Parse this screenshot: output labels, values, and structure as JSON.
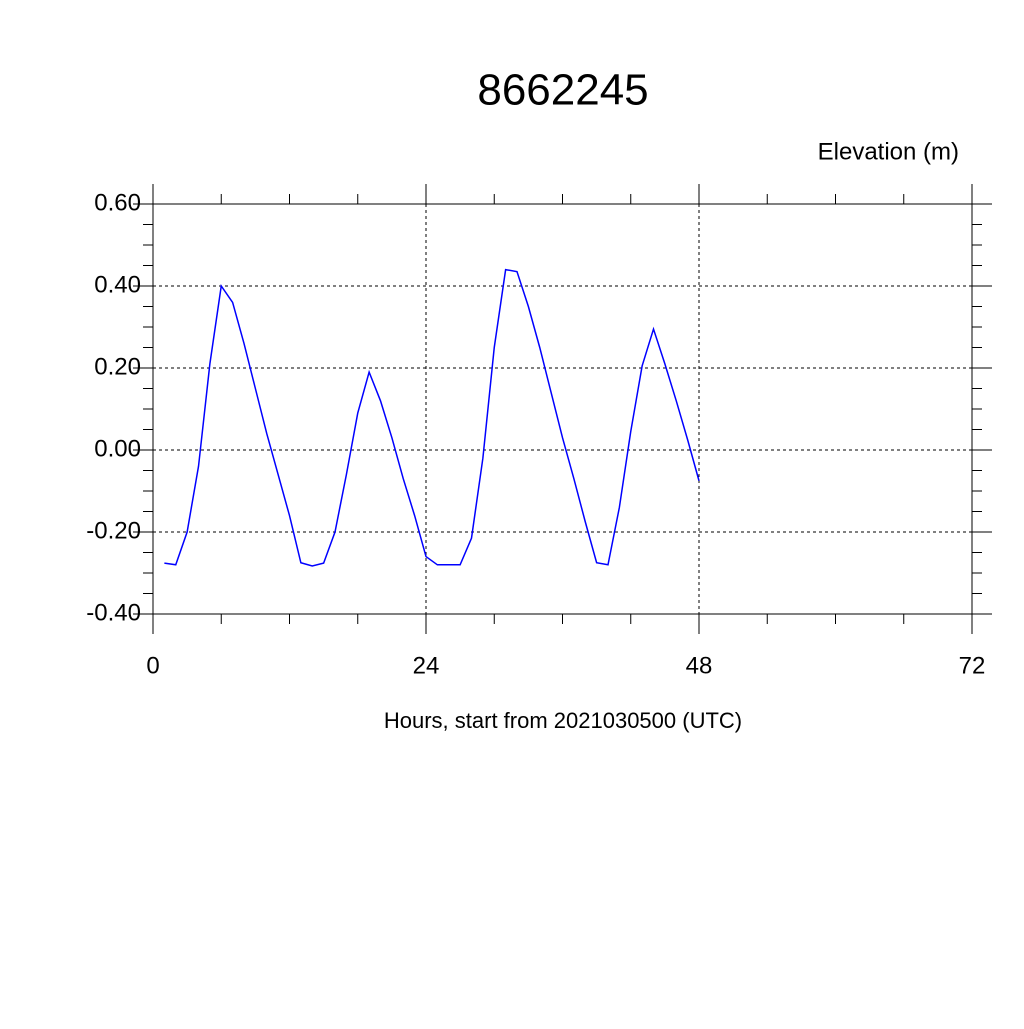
{
  "chart_data": {
    "type": "line",
    "title": "8662245",
    "ylabel": "Elevation (m)",
    "xlabel": "Hours, start from 2021030500 (UTC)",
    "x": [
      1,
      2,
      3,
      4,
      5,
      6,
      7,
      8,
      9,
      10,
      11,
      12,
      13,
      14,
      15,
      16,
      17,
      18,
      19,
      20,
      21,
      22,
      23,
      24,
      25,
      26,
      27,
      28,
      29,
      30,
      31,
      32,
      33,
      34,
      35,
      36,
      37,
      38,
      39,
      40,
      41,
      42,
      43,
      44,
      45,
      46,
      47,
      48
    ],
    "series": [
      {
        "color": "#0000ff",
        "values": [
          -0.276,
          -0.28,
          -0.2,
          -0.04,
          0.21,
          0.4,
          0.36,
          0.26,
          0.15,
          0.04,
          -0.06,
          -0.16,
          -0.275,
          -0.283,
          -0.276,
          -0.2,
          -0.06,
          0.09,
          0.19,
          0.12,
          0.03,
          -0.07,
          -0.16,
          -0.26,
          -0.28,
          -0.28,
          -0.28,
          -0.215,
          -0.02,
          0.25,
          0.44,
          0.435,
          0.35,
          0.25,
          0.14,
          0.03,
          -0.07,
          -0.175,
          -0.275,
          -0.28,
          -0.14,
          0.045,
          0.205,
          0.295,
          0.21,
          0.12,
          0.025,
          -0.075
        ]
      }
    ],
    "xlim": [
      0,
      72
    ],
    "xticks": [
      0,
      24,
      48,
      72
    ],
    "xminorticks": [
      6,
      12,
      18,
      30,
      36,
      42,
      54,
      60,
      66
    ],
    "ylim": [
      -0.4,
      0.6
    ],
    "yticks": [
      {
        "value": -0.4,
        "label": "-0.40"
      },
      {
        "value": -0.2,
        "label": "-0.20"
      },
      {
        "value": 0,
        "label": "0.00"
      },
      {
        "value": 0.2,
        "label": "0.20"
      },
      {
        "value": 0.4,
        "label": "0.40"
      },
      {
        "value": 0.6,
        "label": "0.60"
      }
    ],
    "yminorticks": [
      -0.35,
      -0.3,
      -0.25,
      -0.15,
      -0.1,
      -0.05,
      0.05,
      0.1,
      0.15,
      0.25,
      0.3,
      0.35,
      0.45,
      0.5,
      0.55
    ],
    "grid": true
  }
}
